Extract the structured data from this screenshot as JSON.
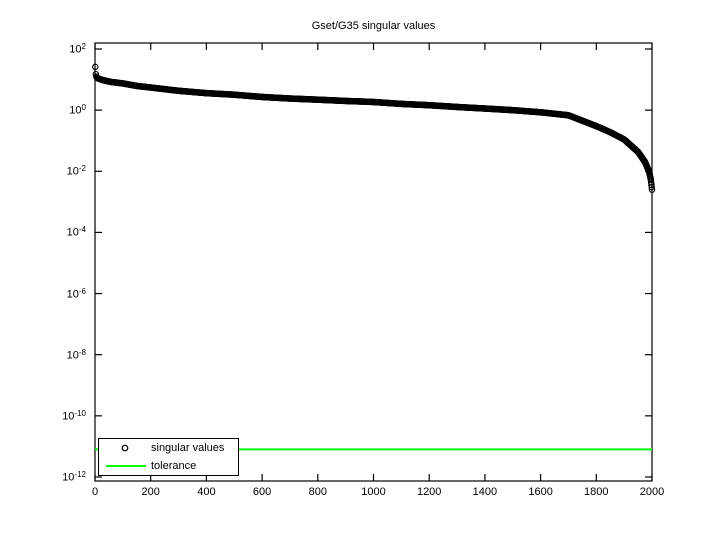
{
  "figure": {
    "background": "#ffffff",
    "axes_color": "#000000"
  },
  "chart_data": {
    "type": "scatter",
    "title": "Gset/G35 singular values",
    "xlabel": "",
    "ylabel": "",
    "yscale": "log",
    "grid": false,
    "xlim": [
      0,
      2000
    ],
    "ylim_exponents": [
      -12.2,
      2.2
    ],
    "x_ticks": [
      0,
      200,
      400,
      600,
      800,
      1000,
      1200,
      1400,
      1600,
      1800,
      2000
    ],
    "y_tick_exponents": [
      2,
      0,
      -2,
      -4,
      -6,
      -8,
      -10,
      -12
    ],
    "legend_position": "southwest",
    "legend": {
      "entries": [
        {
          "label": "singular values",
          "kind": "marker",
          "marker": "o",
          "color": "#000000"
        },
        {
          "label": "tolerance",
          "kind": "line",
          "color": "#00ff00"
        }
      ]
    },
    "series": [
      {
        "name": "singular values",
        "style": "scatter",
        "marker": "o",
        "color": "#000000",
        "n_points": 2000,
        "points_index_value": [
          [
            1,
            26
          ],
          [
            3,
            15
          ],
          [
            5,
            12.5
          ],
          [
            10,
            11
          ],
          [
            30,
            9.5
          ],
          [
            60,
            8.3
          ],
          [
            100,
            7.5
          ],
          [
            150,
            6.2
          ],
          [
            200,
            5.5
          ],
          [
            300,
            4.3
          ],
          [
            400,
            3.6
          ],
          [
            500,
            3.2
          ],
          [
            600,
            2.7
          ],
          [
            700,
            2.4
          ],
          [
            800,
            2.2
          ],
          [
            900,
            2.0
          ],
          [
            1000,
            1.85
          ],
          [
            1100,
            1.6
          ],
          [
            1200,
            1.45
          ],
          [
            1300,
            1.27
          ],
          [
            1400,
            1.13
          ],
          [
            1500,
            1.0
          ],
          [
            1600,
            0.85
          ],
          [
            1700,
            0.68
          ],
          [
            1800,
            0.3
          ],
          [
            1850,
            0.19
          ],
          [
            1900,
            0.11
          ],
          [
            1950,
            0.043
          ],
          [
            1975,
            0.02
          ],
          [
            1990,
            0.0095
          ],
          [
            1996,
            0.0052
          ],
          [
            2000,
            0.0025
          ]
        ]
      },
      {
        "name": "tolerance",
        "style": "line",
        "color": "#00ff00",
        "value": 8e-12
      }
    ]
  }
}
